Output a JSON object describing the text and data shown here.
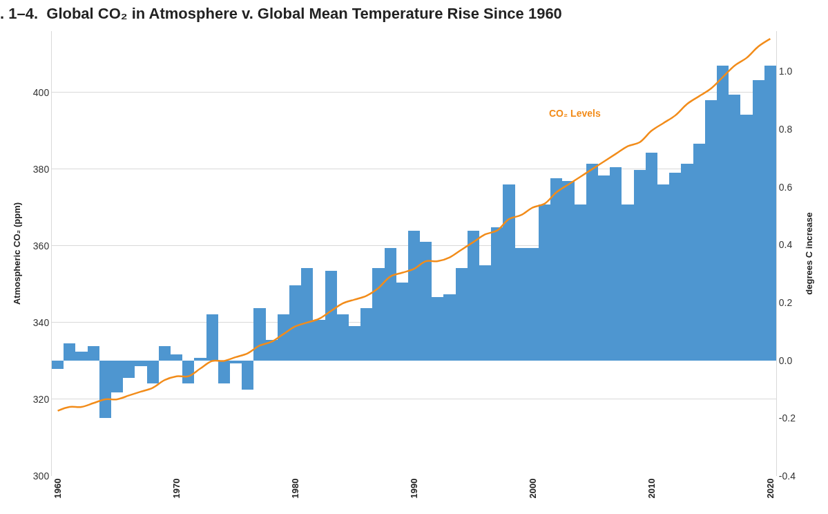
{
  "chart_data": {
    "type": "bar",
    "title": ". 1–4.  Global CO₂ in Atmosphere v. Global Mean Temperature Rise Since 1960",
    "ylabel": "Atmospheric CO₂ (ppm)",
    "y2label": "degrees C increase",
    "x": [
      1960,
      1961,
      1962,
      1963,
      1964,
      1965,
      1966,
      1967,
      1968,
      1969,
      1970,
      1971,
      1972,
      1973,
      1974,
      1975,
      1976,
      1977,
      1978,
      1979,
      1980,
      1981,
      1982,
      1983,
      1984,
      1985,
      1986,
      1987,
      1988,
      1989,
      1990,
      1991,
      1992,
      1993,
      1994,
      1995,
      1996,
      1997,
      1998,
      1999,
      2000,
      2001,
      2002,
      2003,
      2004,
      2005,
      2006,
      2007,
      2008,
      2009,
      2010,
      2011,
      2012,
      2013,
      2014,
      2015,
      2016,
      2017,
      2018,
      2019,
      2020
    ],
    "series": [
      {
        "axis": "y2",
        "color": "#4e96d0",
        "values": [
          -0.03,
          0.06,
          0.03,
          0.05,
          -0.2,
          -0.11,
          -0.06,
          -0.02,
          -0.08,
          0.05,
          0.02,
          -0.08,
          0.01,
          0.16,
          -0.08,
          -0.01,
          -0.1,
          0.18,
          0.07,
          0.16,
          0.26,
          0.32,
          0.14,
          0.31,
          0.16,
          0.12,
          0.18,
          0.32,
          0.39,
          0.27,
          0.45,
          0.41,
          0.22,
          0.23,
          0.32,
          0.45,
          0.33,
          0.46,
          0.61,
          0.39,
          0.39,
          0.54,
          0.63,
          0.62,
          0.54,
          0.68,
          0.64,
          0.67,
          0.54,
          0.66,
          0.72,
          0.61,
          0.65,
          0.68,
          0.75,
          0.9,
          1.02,
          0.92,
          0.85,
          0.97,
          1.02
        ]
      },
      {
        "type": "line",
        "axis": "y",
        "color": "#f28c1a",
        "values": [
          317,
          318,
          318,
          319,
          320,
          320,
          321,
          322,
          323,
          325,
          326,
          326,
          328,
          330,
          330,
          331,
          332,
          334,
          335,
          337,
          339,
          340,
          341,
          343,
          345,
          346,
          347,
          349,
          352,
          353,
          354,
          356,
          356,
          357,
          359,
          361,
          363,
          364,
          367,
          368,
          370,
          371,
          374,
          376,
          378,
          380,
          382,
          384,
          386,
          387,
          390,
          392,
          394,
          397,
          399,
          401,
          404,
          407,
          409,
          412,
          414
        ]
      }
    ],
    "annotations": [
      "CO₂ Levels"
    ],
    "xlim": [
      1959.5,
      2020.5
    ],
    "xticks": [
      1960,
      1970,
      1980,
      1990,
      2000,
      2010,
      2020
    ],
    "ylim": [
      300,
      416
    ],
    "yticks": [
      300,
      320,
      340,
      360,
      380,
      400
    ],
    "y2lim": [
      -0.4,
      1.14
    ],
    "y2ticks": [
      {
        "value": -0.4,
        "label": "-0.4"
      },
      {
        "value": -0.2,
        "label": "-0.2"
      },
      {
        "value": 0,
        "label": "0.0"
      },
      {
        "value": 0.2,
        "label": "0.2"
      },
      {
        "value": 0.4,
        "label": "0.4"
      },
      {
        "value": 0.6,
        "label": "0.6"
      },
      {
        "value": 0.8,
        "label": "0.8"
      },
      {
        "value": 1.0,
        "label": "1.0"
      }
    ],
    "grid": "y"
  }
}
